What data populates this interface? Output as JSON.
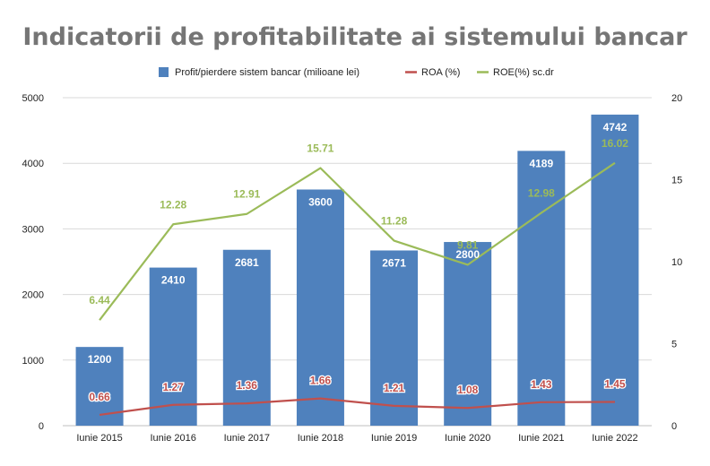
{
  "chart_data": {
    "type": "bar",
    "title": "Indicatorii de profitabilitate ai sistemului bancar",
    "categories": [
      "Iunie 2015",
      "Iunie 2016",
      "Iunie 2017",
      "Iunie 2018",
      "Iunie 2019",
      "Iunie 2020",
      "Iunie 2021",
      "Iunie 2022"
    ],
    "series": [
      {
        "name": "Profit/pierdere sistem bancar (milioane lei)",
        "type": "bar",
        "axis": "left",
        "color": "#4f81bd",
        "label_color": "#ffffff",
        "values": [
          1200,
          2410,
          2681,
          3600,
          2671,
          2800,
          4189,
          4742
        ],
        "labels": [
          "1200",
          "2410",
          "2681",
          "3600",
          "2671",
          "2800",
          "4189",
          "4742"
        ]
      },
      {
        "name": "ROA (%)",
        "type": "line",
        "axis": "right",
        "color": "#c0504d",
        "label_color": "#c0504d",
        "values": [
          0.66,
          1.27,
          1.36,
          1.66,
          1.21,
          1.08,
          1.43,
          1.45
        ],
        "labels": [
          "0.66",
          "1.27",
          "1.36",
          "1.66",
          "1.21",
          "1.08",
          "1.43",
          "1.45"
        ]
      },
      {
        "name": "ROE(%) sc.dr",
        "type": "line",
        "axis": "right",
        "color": "#9bbb59",
        "label_color": "#9bbb59",
        "values": [
          6.44,
          12.28,
          12.91,
          15.71,
          11.28,
          9.81,
          12.98,
          16.02
        ],
        "labels": [
          "6.44",
          "12.28",
          "12.91",
          "15.71",
          "11.28",
          "9.81",
          "12.98",
          "16.02"
        ]
      }
    ],
    "y_left": {
      "min": 0,
      "max": 5000,
      "ticks": [
        "0",
        "1000",
        "2000",
        "3000",
        "4000",
        "5000"
      ]
    },
    "y_right": {
      "min": 0,
      "max": 20,
      "ticks": [
        "0",
        "5",
        "10",
        "15",
        "20"
      ]
    },
    "grid": true,
    "legend_position": "top",
    "colors": {
      "title": "#757575",
      "grid": "#d9d9d9",
      "axis_text": "#222222"
    }
  }
}
